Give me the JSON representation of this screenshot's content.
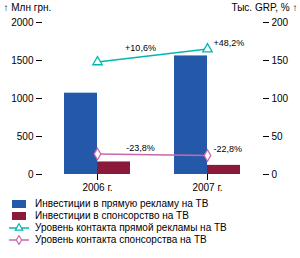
{
  "chart_data": {
    "type": "bar",
    "categories": [
      "2006 г.",
      "2007 г."
    ],
    "series": [
      {
        "name": "Инвестиции в прямую рекламу на ТВ",
        "type": "bar",
        "color": "#2458a8",
        "values": [
          1070,
          1560
        ]
      },
      {
        "name": "Инвестиции в спонсорство на ТВ",
        "type": "bar",
        "color": "#8b1a3a",
        "values": [
          165,
          120
        ]
      },
      {
        "name": "Уровень контакта прямой рекламы на ТВ",
        "type": "line",
        "axis": "y2",
        "color": "#00b8b0",
        "marker": "triangle",
        "values": [
          148,
          165
        ],
        "annotations": [
          "+10,6%",
          "+48,2%"
        ]
      },
      {
        "name": "Уровень контакта спонсорства на ТВ",
        "type": "line",
        "axis": "y2",
        "color": "#cc66aa",
        "marker": "diamond",
        "values": [
          27,
          25
        ],
        "annotations": [
          "-23,8%",
          "-22,8%"
        ]
      }
    ],
    "ylabel": "Млн грн.",
    "y2label": "Тыс. GRP, %",
    "ylim": [
      0,
      2000
    ],
    "yticks": [
      0,
      500,
      1000,
      1500,
      2000
    ],
    "y2lim": [
      0,
      200
    ],
    "y2ticks": [
      0,
      50,
      100,
      150,
      200
    ],
    "legend": "bottom"
  }
}
